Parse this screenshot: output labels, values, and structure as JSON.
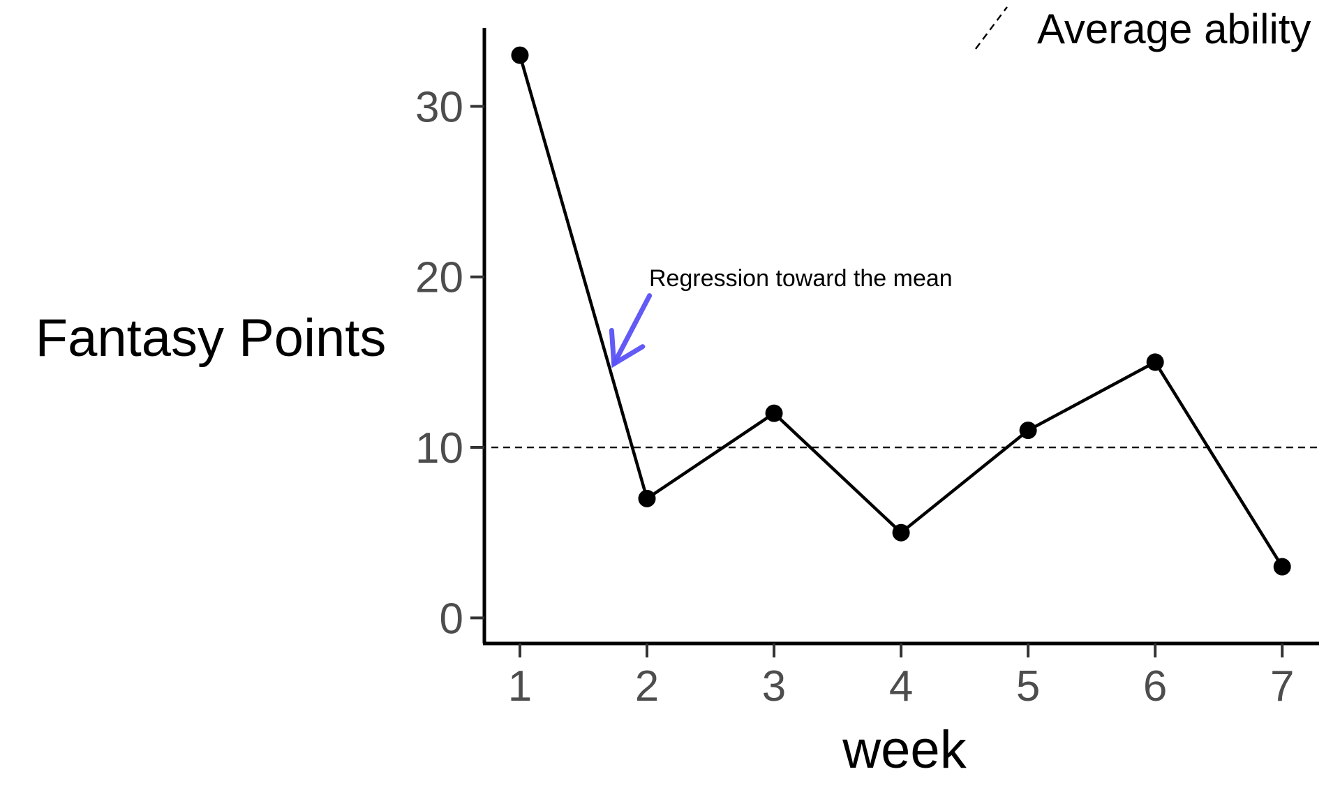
{
  "chart_data": {
    "type": "line",
    "xlabel": "week",
    "ylabel": "Fantasy Points",
    "x": [
      1,
      2,
      3,
      4,
      5,
      6,
      7
    ],
    "series": [
      {
        "values": [
          33,
          7,
          12,
          5,
          11,
          15,
          3
        ],
        "color": "#000000",
        "markers": true
      }
    ],
    "x_ticks": [
      "1",
      "2",
      "3",
      "4",
      "5",
      "6",
      "7"
    ],
    "y_ticks": [
      "0",
      "10",
      "20",
      "30"
    ],
    "xlim": [
      0.72,
      7.29
    ],
    "ylim": [
      -1.5,
      34.6
    ],
    "reference_line": {
      "y": 10,
      "style": "dashed",
      "label": "Average ability"
    },
    "legend": {
      "entries": [
        "Average ability"
      ],
      "position": "top-right"
    },
    "annotation": {
      "text": "Regression toward the mean",
      "arrow_color": "#5a52f5",
      "arrow_from": {
        "x": 2.02,
        "y": 18.9
      },
      "arrow_to": {
        "x": 1.74,
        "y": 14.9
      }
    },
    "grid": false,
    "theme": "classic"
  }
}
